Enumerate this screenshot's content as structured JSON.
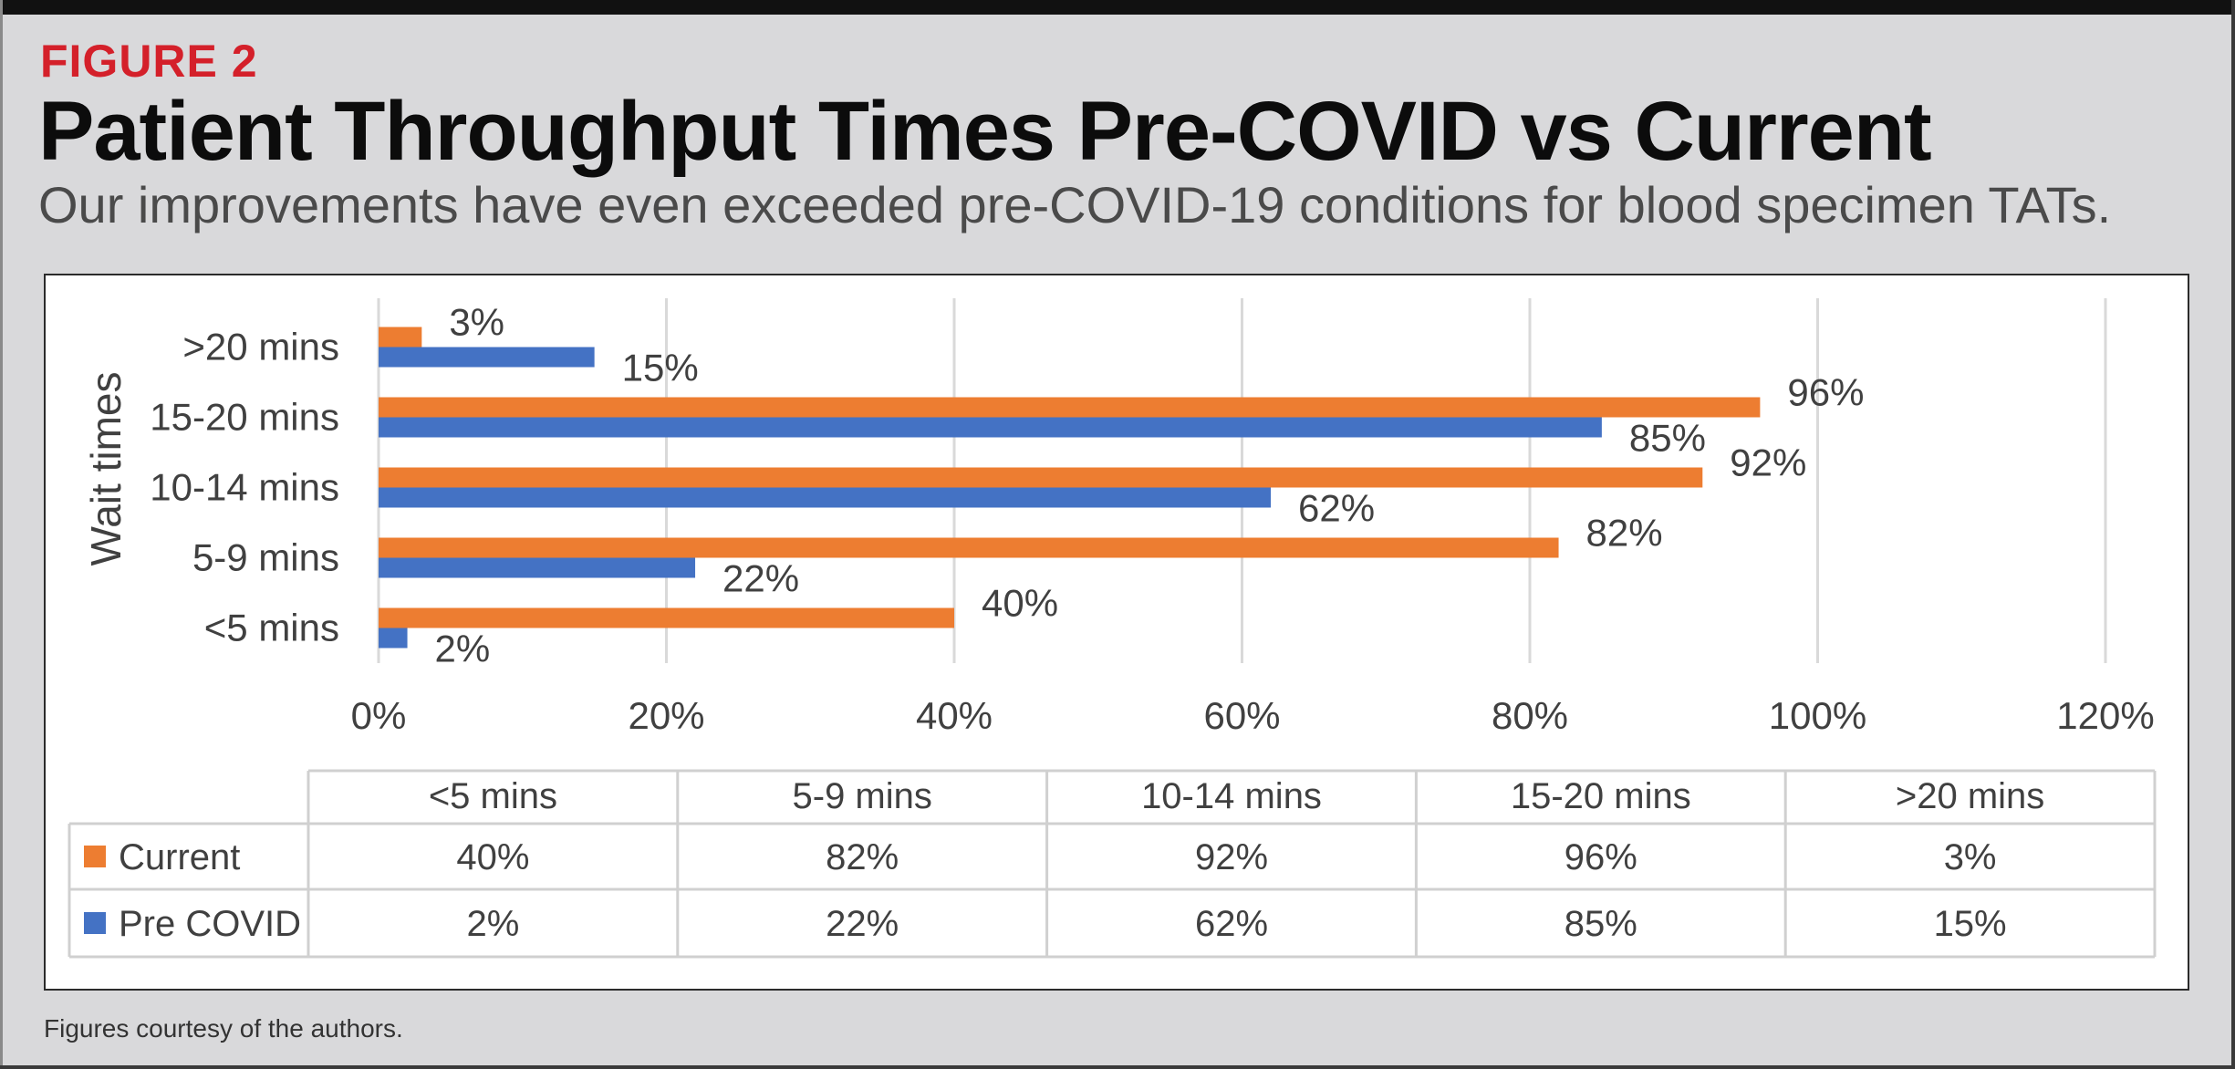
{
  "figure_label": "FIGURE 2",
  "title": "Patient Throughput Times Pre-COVID vs Current",
  "subtitle": "Our improvements have even exceeded pre-COVID-19 conditions for blood specimen TATs.",
  "footer": "Figures courtesy of the authors.",
  "colors": {
    "current": "#ed7d31",
    "pre_covid": "#4472c4",
    "figure_label": "#d4202a",
    "gridline": "#d9d9d9"
  },
  "chart_data": {
    "type": "bar",
    "orientation": "horizontal",
    "ylabel": "Wait times",
    "xlabel": "",
    "xlim": [
      0,
      120
    ],
    "x_ticks": [
      "0%",
      "20%",
      "40%",
      "60%",
      "80%",
      "100%",
      "120%"
    ],
    "grid": true,
    "categories": [
      "<5 mins",
      "5-9 mins",
      "10-14 mins",
      "15-20 mins",
      ">20 mins"
    ],
    "series": [
      {
        "name": "Current",
        "values": [
          40,
          82,
          92,
          96,
          3
        ],
        "labels": [
          "40%",
          "82%",
          "92%",
          "96%",
          "3%"
        ],
        "color": "#ed7d31"
      },
      {
        "name": "Pre COVID",
        "values": [
          2,
          22,
          62,
          85,
          15
        ],
        "labels": [
          "2%",
          "22%",
          "62%",
          "85%",
          "15%"
        ],
        "color": "#4472c4"
      }
    ],
    "data_table": true,
    "legend": "data-table"
  }
}
